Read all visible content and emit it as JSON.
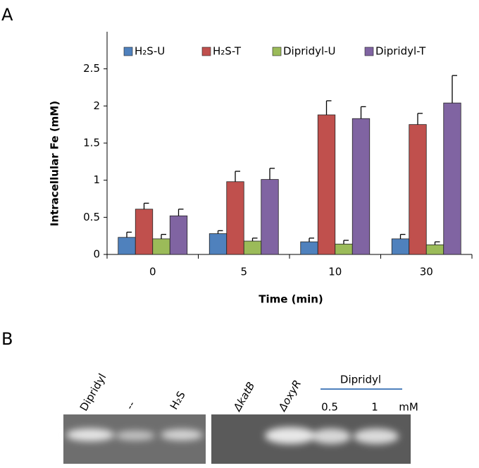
{
  "panel_labels": [
    "A",
    "B"
  ],
  "chart_data": {
    "type": "bar",
    "y_label": "Intracellular Fe (mM)",
    "x_label": "Time (min)",
    "categories": [
      "0",
      "5",
      "10",
      "30"
    ],
    "series": [
      {
        "name": "H₂S-U",
        "color": "#4f81bd",
        "values": [
          0.23,
          0.28,
          0.17,
          0.21
        ],
        "errors": [
          0.07,
          0.04,
          0.05,
          0.06
        ]
      },
      {
        "name": "H₂S-T",
        "color": "#c0504d",
        "values": [
          0.61,
          0.98,
          1.88,
          1.75
        ],
        "errors": [
          0.08,
          0.14,
          0.19,
          0.15
        ]
      },
      {
        "name": "Dipridyl-U",
        "color": "#9bbb59",
        "values": [
          0.21,
          0.18,
          0.14,
          0.13
        ],
        "errors": [
          0.06,
          0.04,
          0.05,
          0.04
        ]
      },
      {
        "name": "Dipridyl-T",
        "color": "#8064a2",
        "values": [
          0.52,
          1.01,
          1.83,
          2.04
        ],
        "errors": [
          0.09,
          0.15,
          0.16,
          0.37
        ]
      }
    ],
    "ylim": [
      0,
      3
    ],
    "yticks": [
      0,
      0.5,
      1,
      1.5,
      2,
      2.5
    ],
    "grid": false,
    "legend": "top"
  },
  "gel": {
    "lane_labels": [
      "Dipridyl",
      "--",
      "H₂S",
      "ΔkatB",
      "ΔoxyR"
    ],
    "group_label": "Dipridyl",
    "concentrations": [
      "0.5",
      "1"
    ],
    "unit": "mM"
  }
}
